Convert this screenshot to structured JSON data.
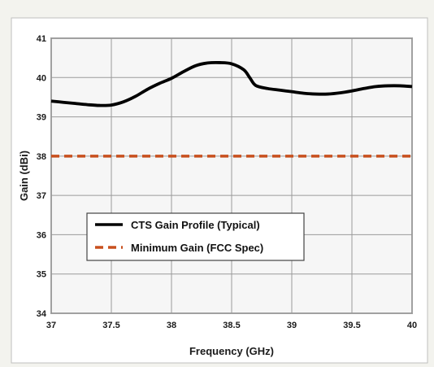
{
  "chart_data": {
    "type": "line",
    "xlabel": "Frequency (GHz)",
    "ylabel": "Gain (dBi)",
    "xlim": [
      37,
      40
    ],
    "ylim": [
      34,
      41
    ],
    "x_ticks": [
      "37",
      "37.5",
      "38",
      "38.5",
      "39",
      "39.5",
      "40"
    ],
    "y_ticks": [
      "34",
      "35",
      "36",
      "37",
      "38",
      "39",
      "40",
      "41"
    ],
    "grid": true,
    "legend_position": "lower-left",
    "series": [
      {
        "name": "CTS Gain Profile (Typical)",
        "color": "#000000",
        "style": "solid",
        "x": [
          37.0,
          37.1,
          37.2,
          37.3,
          37.4,
          37.5,
          37.6,
          37.7,
          37.8,
          37.9,
          38.0,
          38.1,
          38.2,
          38.3,
          38.4,
          38.5,
          38.6,
          38.65,
          38.7,
          38.8,
          38.9,
          39.0,
          39.1,
          39.2,
          39.3,
          39.4,
          39.5,
          39.6,
          39.7,
          39.8,
          39.9,
          40.0
        ],
        "y": [
          39.4,
          39.37,
          39.34,
          39.31,
          39.29,
          39.3,
          39.38,
          39.52,
          39.7,
          39.85,
          39.98,
          40.15,
          40.3,
          40.37,
          40.38,
          40.35,
          40.2,
          40.0,
          39.8,
          39.72,
          39.68,
          39.64,
          39.6,
          39.58,
          39.58,
          39.61,
          39.66,
          39.72,
          39.77,
          39.79,
          39.79,
          39.77
        ]
      },
      {
        "name": "Minimum Gain (FCC Spec)",
        "color": "#c8501e",
        "style": "dashed",
        "x": [
          37,
          40
        ],
        "y": [
          38,
          38
        ]
      }
    ]
  }
}
